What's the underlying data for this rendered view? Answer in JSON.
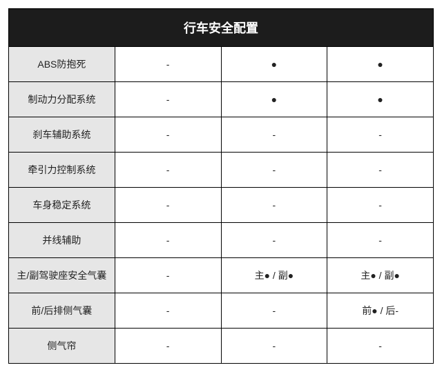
{
  "table": {
    "title": "行车安全配置",
    "header_bg": "#1c1c1c",
    "header_fg": "#ffffff",
    "label_bg": "#e6e6e6",
    "value_bg": "#ffffff",
    "border_color": "#000000",
    "title_fontsize": 18,
    "cell_fontsize": 14,
    "column_widths": [
      "25%",
      "25%",
      "25%",
      "25%"
    ],
    "rows": [
      {
        "label": "ABS防抱死",
        "c1": "-",
        "c2": "●",
        "c3": "●"
      },
      {
        "label": "制动力分配系统",
        "c1": "-",
        "c2": "●",
        "c3": "●"
      },
      {
        "label": "刹车辅助系统",
        "c1": "-",
        "c2": "-",
        "c3": "-"
      },
      {
        "label": "牵引力控制系统",
        "c1": "-",
        "c2": "-",
        "c3": "-"
      },
      {
        "label": "车身稳定系统",
        "c1": "-",
        "c2": "-",
        "c3": "-"
      },
      {
        "label": "并线辅助",
        "c1": "-",
        "c2": "-",
        "c3": "-"
      },
      {
        "label": "主/副驾驶座安全气囊",
        "c1": "-",
        "c2": "主● / 副●",
        "c3": "主● / 副●"
      },
      {
        "label": "前/后排侧气囊",
        "c1": "-",
        "c2": "-",
        "c3": "前● / 后-"
      },
      {
        "label": "侧气帘",
        "c1": "-",
        "c2": "-",
        "c3": "-"
      }
    ]
  }
}
